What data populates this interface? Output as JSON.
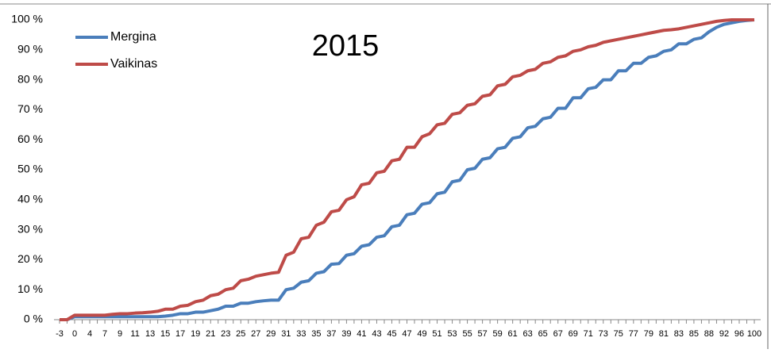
{
  "chart_data": {
    "type": "line",
    "title": "2015",
    "categories": [
      "-3",
      null,
      "0",
      null,
      "4",
      null,
      "7",
      null,
      "9",
      null,
      "11",
      null,
      "13",
      null,
      "15",
      null,
      "17",
      null,
      "19",
      null,
      "21",
      null,
      "23",
      null,
      "25",
      null,
      "27",
      null,
      "29",
      null,
      "31",
      null,
      "33",
      null,
      "35",
      null,
      "37",
      null,
      "39",
      null,
      "41",
      null,
      "43",
      null,
      "45",
      null,
      "47",
      null,
      "49",
      null,
      "51",
      null,
      "53",
      null,
      "55",
      null,
      "57",
      null,
      "59",
      null,
      "61",
      null,
      "63",
      null,
      "65",
      null,
      "67",
      null,
      "69",
      null,
      "71",
      null,
      "73",
      null,
      "75",
      null,
      "77",
      null,
      "79",
      null,
      "81",
      null,
      "83",
      null,
      "85",
      null,
      "88",
      null,
      "92",
      null,
      "96",
      null,
      "100"
    ],
    "series": [
      {
        "name": "Mergina",
        "color": "#4a7ebb",
        "values": [
          0,
          0,
          1,
          1,
          1,
          1,
          1,
          1,
          1,
          1,
          1,
          1,
          1,
          1,
          1.2,
          1.5,
          2,
          2,
          2.5,
          2.5,
          3,
          3.5,
          4.5,
          4.5,
          5.5,
          5.5,
          6,
          6.3,
          6.5,
          6.5,
          10,
          10.5,
          12.5,
          13,
          15.5,
          16,
          18.5,
          18.7,
          21.5,
          22,
          24.5,
          25,
          27.5,
          28,
          31,
          31.5,
          35,
          35.5,
          38.5,
          39,
          42,
          42.5,
          46,
          46.5,
          50,
          50.5,
          53.5,
          54,
          57,
          57.5,
          60.5,
          61,
          64,
          64.5,
          67,
          67.5,
          70.5,
          70.5,
          74,
          74,
          77,
          77.5,
          80,
          80,
          83,
          83,
          85.5,
          85.5,
          87.5,
          88,
          89.5,
          90,
          92,
          92,
          93.5,
          94,
          96,
          97.5,
          98.5,
          99,
          99.5,
          99.8,
          100
        ]
      },
      {
        "name": "Vaikinas",
        "color": "#be4b48",
        "values": [
          0,
          0,
          1.5,
          1.5,
          1.5,
          1.5,
          1.5,
          1.8,
          2,
          2,
          2.2,
          2.3,
          2.5,
          2.8,
          3.5,
          3.5,
          4.5,
          4.8,
          6,
          6.5,
          8,
          8.5,
          10,
          10.5,
          13,
          13.5,
          14.5,
          15,
          15.5,
          15.8,
          21.5,
          22.5,
          27,
          27.5,
          31.5,
          32.5,
          36,
          36.5,
          40,
          41,
          45,
          45.5,
          49,
          49.5,
          53,
          53.5,
          57.5,
          57.5,
          61,
          62,
          65,
          65.5,
          68.5,
          69,
          71.5,
          72,
          74.5,
          75,
          78,
          78.5,
          81,
          81.5,
          83,
          83.5,
          85.5,
          86,
          87.5,
          88,
          89.5,
          90,
          91,
          91.5,
          92.5,
          93,
          93.5,
          94,
          94.5,
          95,
          95.5,
          96,
          96.5,
          96.7,
          97,
          97.5,
          98,
          98.5,
          99,
          99.5,
          99.8,
          100,
          100,
          100,
          100
        ]
      }
    ],
    "ylim": [
      0,
      100
    ],
    "yticks": [
      {
        "value": 0,
        "label": "0 %"
      },
      {
        "value": 10,
        "label": "10 %"
      },
      {
        "value": 20,
        "label": "20 %"
      },
      {
        "value": 30,
        "label": "30 %"
      },
      {
        "value": 40,
        "label": "40 %"
      },
      {
        "value": 50,
        "label": "50 %"
      },
      {
        "value": 60,
        "label": "60 %"
      },
      {
        "value": 70,
        "label": "70 %"
      },
      {
        "value": 80,
        "label": "80 %"
      },
      {
        "value": 90,
        "label": "90 %"
      },
      {
        "value": 100,
        "label": "100 %"
      }
    ],
    "legend": "upper left",
    "grid": false
  }
}
